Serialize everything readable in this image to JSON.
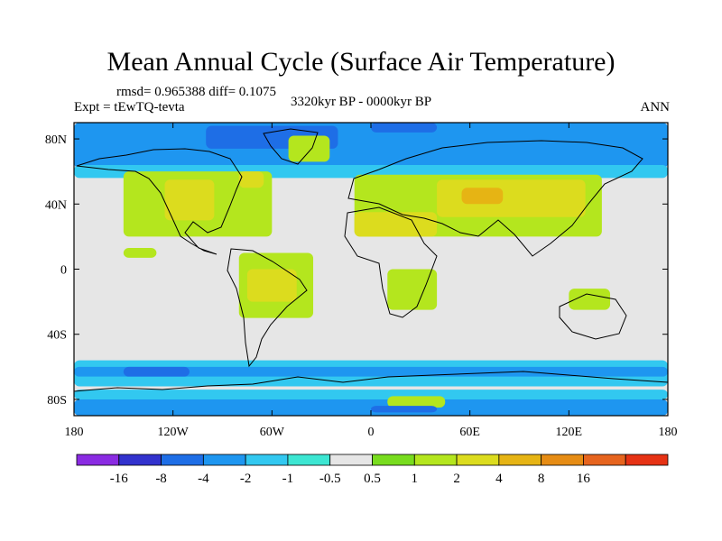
{
  "title": "Mean Annual Cycle (Surface Air Temperature)",
  "stats_line": "rmsd= 0.965388 diff= 0.1075",
  "experiment": "Expt = tEwTQ-tevta",
  "period": "3320kyr BP - 0000kyr BP",
  "season": "ANN",
  "map": {
    "lon_range": [
      -180,
      180
    ],
    "lat_range": [
      -90,
      90
    ],
    "lat_ticks": [
      {
        "value": 80,
        "label": "80N"
      },
      {
        "value": 40,
        "label": "40N"
      },
      {
        "value": 0,
        "label": "0"
      },
      {
        "value": -40,
        "label": "40S"
      },
      {
        "value": -80,
        "label": "80S"
      }
    ],
    "lon_ticks": [
      {
        "value": -180,
        "label": "180"
      },
      {
        "value": -120,
        "label": "120W"
      },
      {
        "value": -60,
        "label": "60W"
      },
      {
        "value": 0,
        "label": "0"
      },
      {
        "value": 60,
        "label": "60E"
      },
      {
        "value": 120,
        "label": "120E"
      },
      {
        "value": 180,
        "label": "180"
      }
    ],
    "background_color": "#e6e6e6",
    "anomaly_regions": [
      {
        "level": "-2",
        "lon_min": -180,
        "lon_max": 180,
        "lat_min": 62,
        "lat_max": 90
      },
      {
        "level": "-1",
        "lon_min": -180,
        "lon_max": 180,
        "lat_min": 56,
        "lat_max": 64
      },
      {
        "level": "-4",
        "lon_min": -100,
        "lon_max": -20,
        "lat_min": 74,
        "lat_max": 88
      },
      {
        "level": "-4",
        "lon_min": 0,
        "lon_max": 40,
        "lat_min": 84,
        "lat_max": 90
      },
      {
        "level": "1",
        "lon_min": -50,
        "lon_max": -25,
        "lat_min": 66,
        "lat_max": 82
      },
      {
        "level": "1",
        "lon_min": -150,
        "lon_max": -60,
        "lat_min": 20,
        "lat_max": 60
      },
      {
        "level": "2",
        "lon_min": -125,
        "lon_max": -95,
        "lat_min": 30,
        "lat_max": 55
      },
      {
        "level": "2",
        "lon_min": -80,
        "lon_max": -65,
        "lat_min": 50,
        "lat_max": 60
      },
      {
        "level": "1",
        "lon_min": -150,
        "lon_max": -130,
        "lat_min": 7,
        "lat_max": 13
      },
      {
        "level": "1",
        "lon_min": -80,
        "lon_max": -35,
        "lat_min": -30,
        "lat_max": 10
      },
      {
        "level": "2",
        "lon_min": -75,
        "lon_max": -45,
        "lat_min": -20,
        "lat_max": 0
      },
      {
        "level": "1",
        "lon_min": -10,
        "lon_max": 140,
        "lat_min": 20,
        "lat_max": 58
      },
      {
        "level": "2",
        "lon_min": -10,
        "lon_max": 40,
        "lat_min": 20,
        "lat_max": 35
      },
      {
        "level": "2",
        "lon_min": 40,
        "lon_max": 130,
        "lat_min": 32,
        "lat_max": 55
      },
      {
        "level": "4",
        "lon_min": 55,
        "lon_max": 80,
        "lat_min": 40,
        "lat_max": 50
      },
      {
        "level": "1",
        "lon_min": 10,
        "lon_max": 40,
        "lat_min": -25,
        "lat_max": 0
      },
      {
        "level": "1",
        "lon_min": 120,
        "lon_max": 145,
        "lat_min": -25,
        "lat_max": -12
      },
      {
        "level": "-1",
        "lon_min": -180,
        "lon_max": 180,
        "lat_min": -72,
        "lat_max": -56
      },
      {
        "level": "-2",
        "lon_min": -180,
        "lon_max": 180,
        "lat_min": -66,
        "lat_max": -60
      },
      {
        "level": "-4",
        "lon_min": -150,
        "lon_max": -110,
        "lat_min": -66,
        "lat_max": -60
      },
      {
        "level": "-2",
        "lon_min": -180,
        "lon_max": 180,
        "lat_min": -90,
        "lat_max": -80
      },
      {
        "level": "-1",
        "lon_min": -180,
        "lon_max": 180,
        "lat_min": -80,
        "lat_max": -74
      },
      {
        "level": "1",
        "lon_min": 10,
        "lon_max": 45,
        "lat_min": -85,
        "lat_max": -78
      },
      {
        "level": "-4",
        "lon_min": 0,
        "lon_max": 40,
        "lat_min": -88,
        "lat_max": -84
      }
    ]
  },
  "colorbar": {
    "colors": [
      "#8a2be2",
      "#3232cd",
      "#1e6ee6",
      "#1e96f0",
      "#32c8f0",
      "#3ce6d2",
      "#e6e6e6",
      "#78dc1e",
      "#b4e61e",
      "#dcdc1e",
      "#e6b414",
      "#e68c14",
      "#e6641e",
      "#e63214"
    ],
    "labels": [
      "-16",
      "-8",
      "-4",
      "-2",
      "-1",
      "-0.5",
      "0.5",
      "1",
      "2",
      "4",
      "8",
      "16"
    ]
  }
}
